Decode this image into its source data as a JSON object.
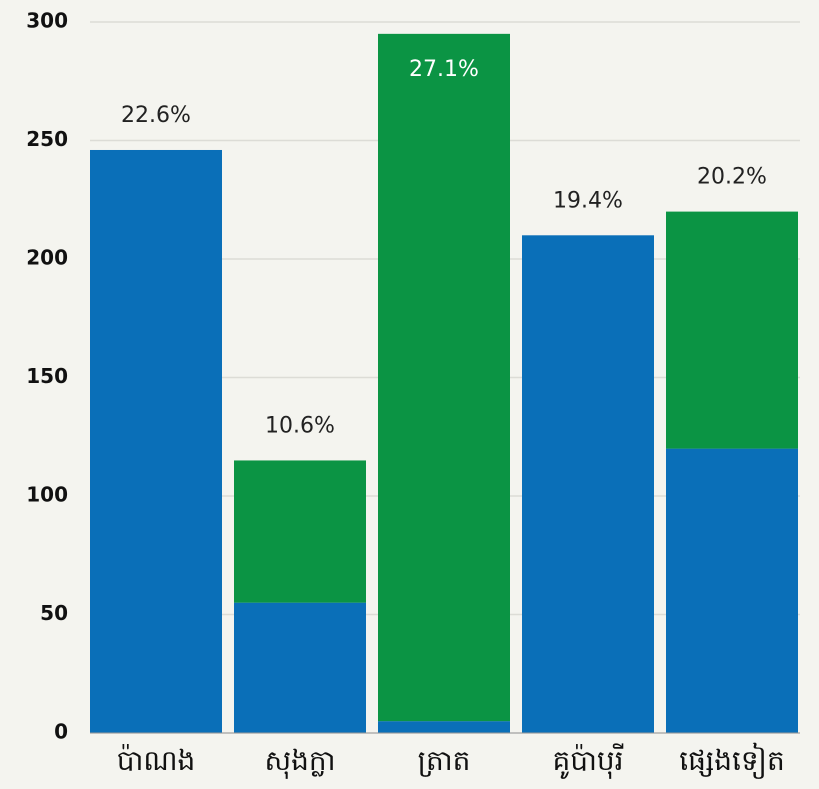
{
  "chart_data": {
    "type": "stacked_bar",
    "categories": [
      "ប៉ាណង",
      "សុងក្លា",
      "ត្រាត",
      "គូប៉ាបុរី",
      "ផ្សេងទៀត"
    ],
    "series": [
      {
        "color": "#0a6fb8",
        "values": [
          246,
          55,
          5,
          210,
          120
        ]
      },
      {
        "color": "#0b9444",
        "values": [
          0,
          60,
          290,
          0,
          100
        ]
      }
    ],
    "share_labels": [
      "22.6%",
      "10.6%",
      "27.1%",
      "19.4%",
      "20.2%"
    ],
    "ylim": [
      0,
      300
    ],
    "yticks": [
      0,
      50,
      100,
      150,
      200,
      250,
      300
    ],
    "grid": true
  }
}
